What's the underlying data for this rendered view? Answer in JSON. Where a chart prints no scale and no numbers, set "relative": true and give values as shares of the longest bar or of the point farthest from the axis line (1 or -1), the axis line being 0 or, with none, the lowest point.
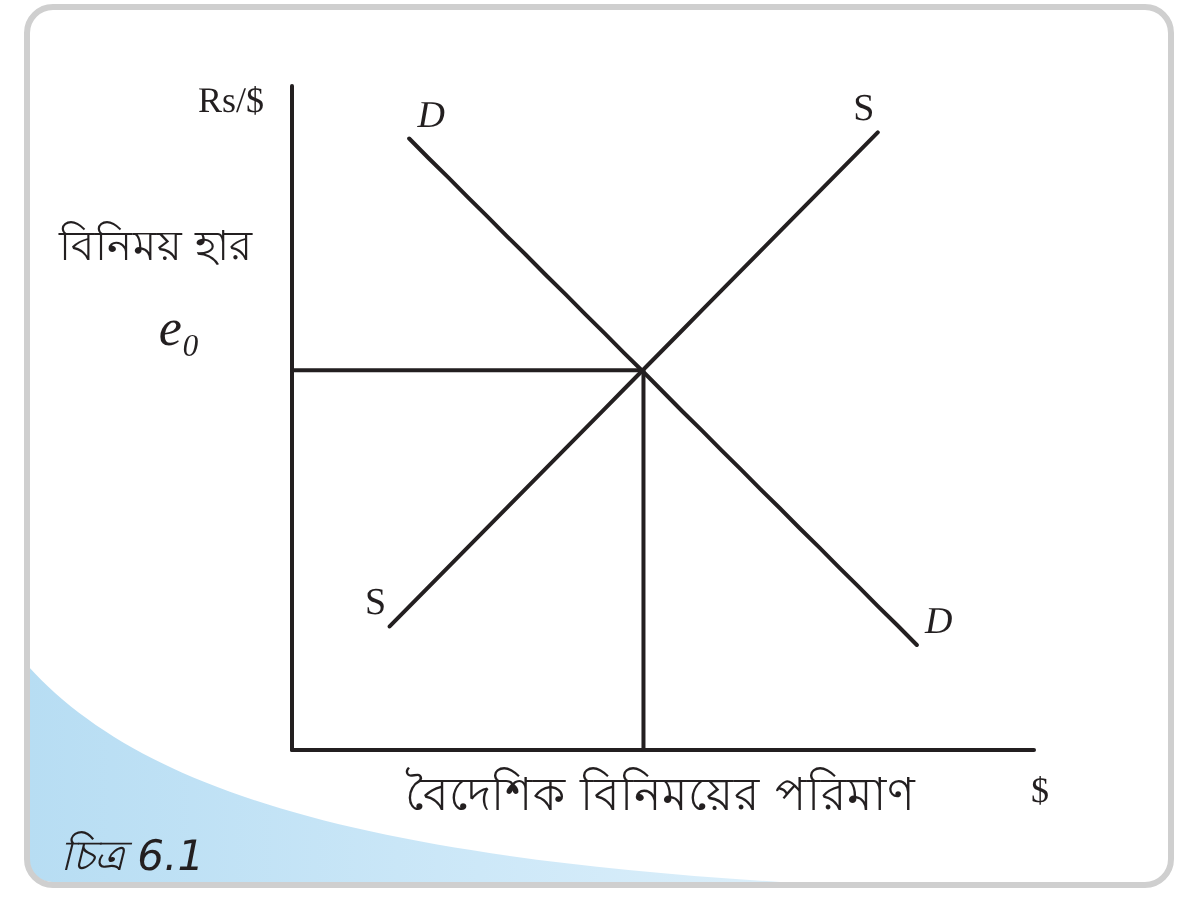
{
  "chart_data": {
    "type": "line",
    "relative": true,
    "xlabel": "বৈদেশিক বিনিময়ের পরিমাণ",
    "ylabel": "বিনিময় হার",
    "annotations": [
      "Rs/$",
      "$",
      "e₀",
      "চিত্র 6.1"
    ],
    "categories": [
      null,
      null,
      null,
      null,
      null,
      null,
      null,
      null,
      null,
      null,
      null,
      null,
      null,
      null,
      null,
      null,
      null,
      null,
      null,
      null,
      null,
      null,
      null,
      null,
      null,
      null,
      null,
      null,
      null,
      null,
      null,
      null,
      null,
      null,
      null,
      null,
      null,
      null,
      null
    ],
    "series": [
      {
        "name": "D",
        "color": "#231f20",
        "values": [
          null,
          null,
          null,
          null,
          null,
          null,
          0.99,
          0.958,
          0.927,
          0.895,
          0.864,
          0.832,
          0.801,
          0.769,
          0.738,
          0.706,
          0.675,
          0.643,
          0.612,
          0.58,
          0.548,
          0.517,
          0.485,
          0.454,
          0.422,
          0.391,
          0.359,
          0.328,
          0.296,
          0.265,
          0.233,
          0.202,
          0.17,
          null,
          null,
          null,
          null,
          null,
          null
        ]
      },
      {
        "name": "S",
        "color": "#231f20",
        "values": [
          null,
          null,
          null,
          null,
          null,
          0.2,
          0.232,
          0.264,
          0.296,
          0.328,
          0.36,
          0.392,
          0.424,
          0.456,
          0.488,
          0.52,
          0.552,
          0.584,
          0.616,
          0.648,
          0.68,
          0.712,
          0.744,
          0.776,
          0.808,
          0.84,
          0.872,
          0.904,
          0.936,
          0.968,
          1.0,
          null,
          null,
          null,
          null,
          null,
          null,
          null,
          null
        ]
      },
      {
        "type": "step",
        "color": "#231f20",
        "values": [
          0.615,
          0.615,
          0.615,
          0.615,
          0.615,
          0.615,
          0.615,
          0.615,
          0.615,
          0.615,
          0.615,
          0.615,
          0.615,
          0.615,
          0.615,
          0.615,
          0.615,
          0.615,
          0.615,
          0,
          null,
          null,
          null,
          null,
          null,
          null,
          null,
          null,
          null,
          null,
          null,
          null,
          null,
          null,
          null,
          null,
          null,
          null,
          null
        ]
      }
    ]
  }
}
